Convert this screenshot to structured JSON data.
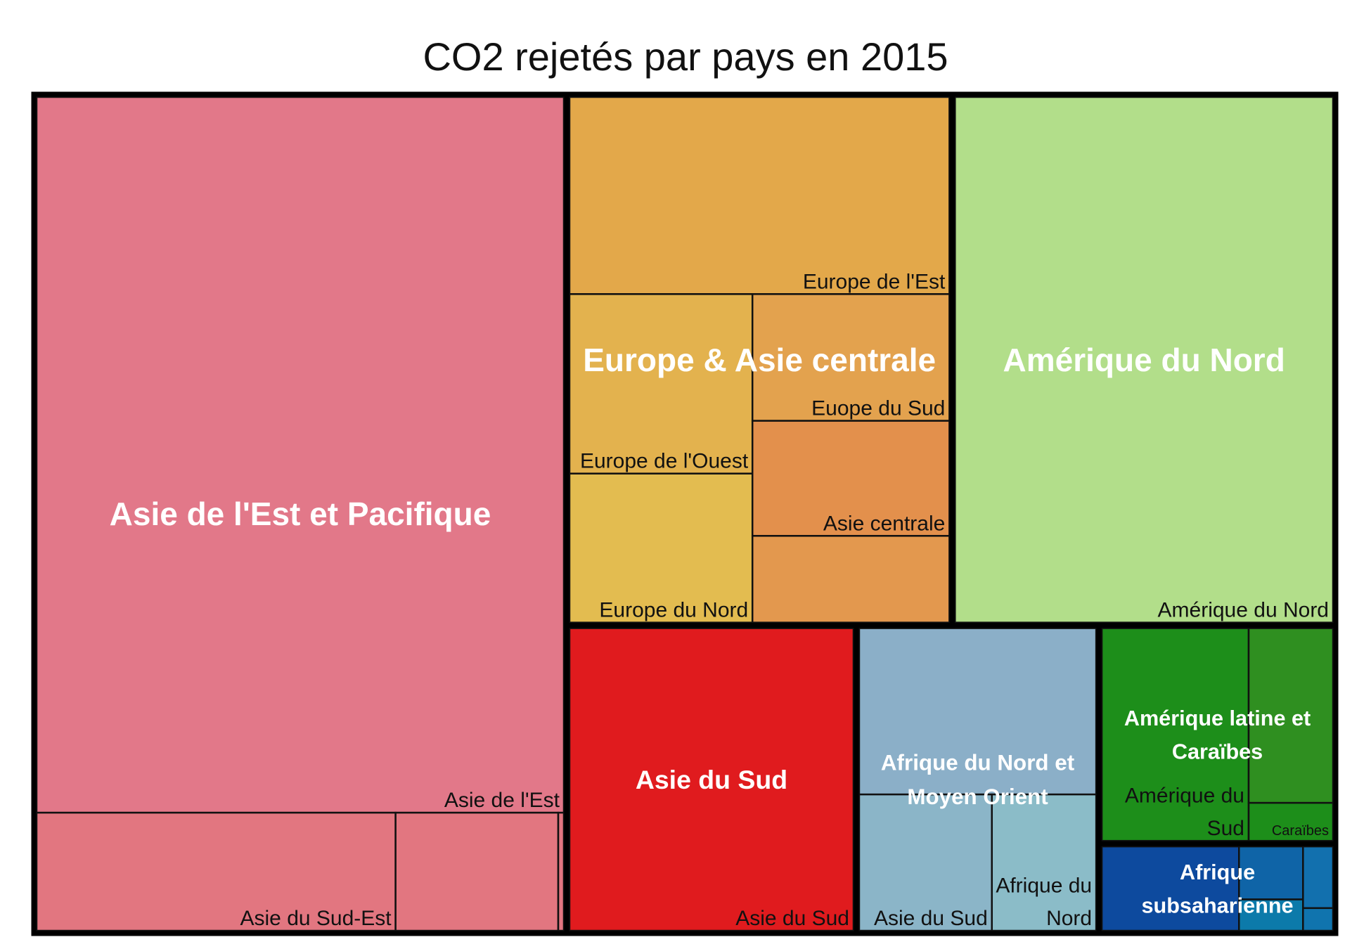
{
  "chart_data": {
    "type": "treemap",
    "title": "CO2 rejetés par pays en 2015",
    "groups": [
      {
        "name": "Asie de l'Est et Pacifique",
        "color": "#E27889",
        "children": [
          {
            "name": "Asie de l'Est",
            "value": 11400,
            "color": "#E27889"
          },
          {
            "name": "Asie du Sud-Est",
            "value": 1280,
            "color": "#E27680"
          },
          {
            "name": "",
            "value": 580,
            "color": "#E27680"
          },
          {
            "name": "",
            "value": 20,
            "color": "#E27680"
          }
        ]
      },
      {
        "name": "Amérique du Nord",
        "color": "#B2DE8A",
        "children": [
          {
            "name": "Amérique du Nord",
            "value": 6050,
            "color": "#B2DE8A"
          }
        ]
      },
      {
        "name": "Europe & Asie centrale",
        "color": "#E3A84A",
        "children": [
          {
            "name": "Europe de l'Est",
            "value": 2280,
            "color": "#E3A84A"
          },
          {
            "name": "Europe de l'Ouest",
            "value": 1000,
            "color": "#E3B24E"
          },
          {
            "name": "Europe du Nord",
            "value": 830,
            "color": "#E3BC50"
          },
          {
            "name": "Euope du Sud",
            "value": 760,
            "color": "#E3A24E"
          },
          {
            "name": "Asie centrale",
            "value": 690,
            "color": "#E3904C"
          },
          {
            "name": "",
            "value": 520,
            "color": "#E3984E"
          }
        ]
      },
      {
        "name": "Afrique du Nord et Moyen Orient",
        "color": "#8BAFC8",
        "children": [
          {
            "name": "",
            "value": 1220,
            "color": "#8BAFC8"
          },
          {
            "name": "Asie du Sud",
            "value": 560,
            "color": "#8BB5C8"
          },
          {
            "name": "Afrique du Nord",
            "value": 440,
            "color": "#8BBCC8"
          }
        ]
      },
      {
        "name": "Asie du Sud",
        "color": "#E01B1E",
        "children": [
          {
            "name": "Asie du Sud",
            "value": 2650,
            "color": "#E01B1E"
          }
        ]
      },
      {
        "name": "Amérique latine et Caraïbes",
        "color": "#1D8E1A",
        "children": [
          {
            "name": "Amérique du Sud",
            "value": 975,
            "color": "#1D8E1A"
          },
          {
            "name": "",
            "value": 460,
            "color": "#2F8F20"
          },
          {
            "name": "Caraïbes",
            "value": 100,
            "color": "#1D8E1A"
          }
        ]
      },
      {
        "name": "Afrique subsaharienne",
        "color": "#0D4A9E",
        "children": [
          {
            "name": "",
            "value": 375,
            "color": "#0D4A9E"
          },
          {
            "name": "",
            "value": 110,
            "color": "#0F64A7"
          },
          {
            "name": "",
            "value": 60,
            "color": "#1270AE"
          },
          {
            "name": "",
            "value": 65,
            "color": "#0C7AAA"
          },
          {
            "name": "",
            "value": 22,
            "color": "#1074AE"
          }
        ]
      }
    ]
  }
}
